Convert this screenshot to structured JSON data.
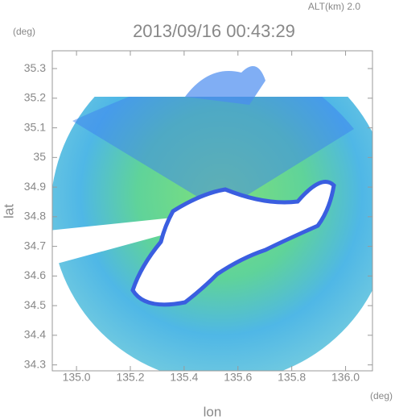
{
  "chart_data": {
    "type": "image",
    "title": "2013/09/16 00:43:29",
    "subtitle": "ALT(km) 2.0",
    "xlabel": "lon",
    "ylabel": "lat",
    "xunit": "(deg)",
    "yunit": "(deg)",
    "xlim": [
      134.91,
      136.1
    ],
    "ylim": [
      34.28,
      35.36
    ],
    "xticks": [
      {
        "value": 135,
        "label": "135.0"
      },
      135.2,
      135.4,
      135.6,
      135.8,
      {
        "value": 136,
        "label": "136.0"
      }
    ],
    "yticks": [
      34.3,
      34.4,
      34.5,
      34.6,
      34.7,
      34.8,
      34.9,
      35.0,
      35.1,
      35.2,
      35.3
    ]
  }
}
